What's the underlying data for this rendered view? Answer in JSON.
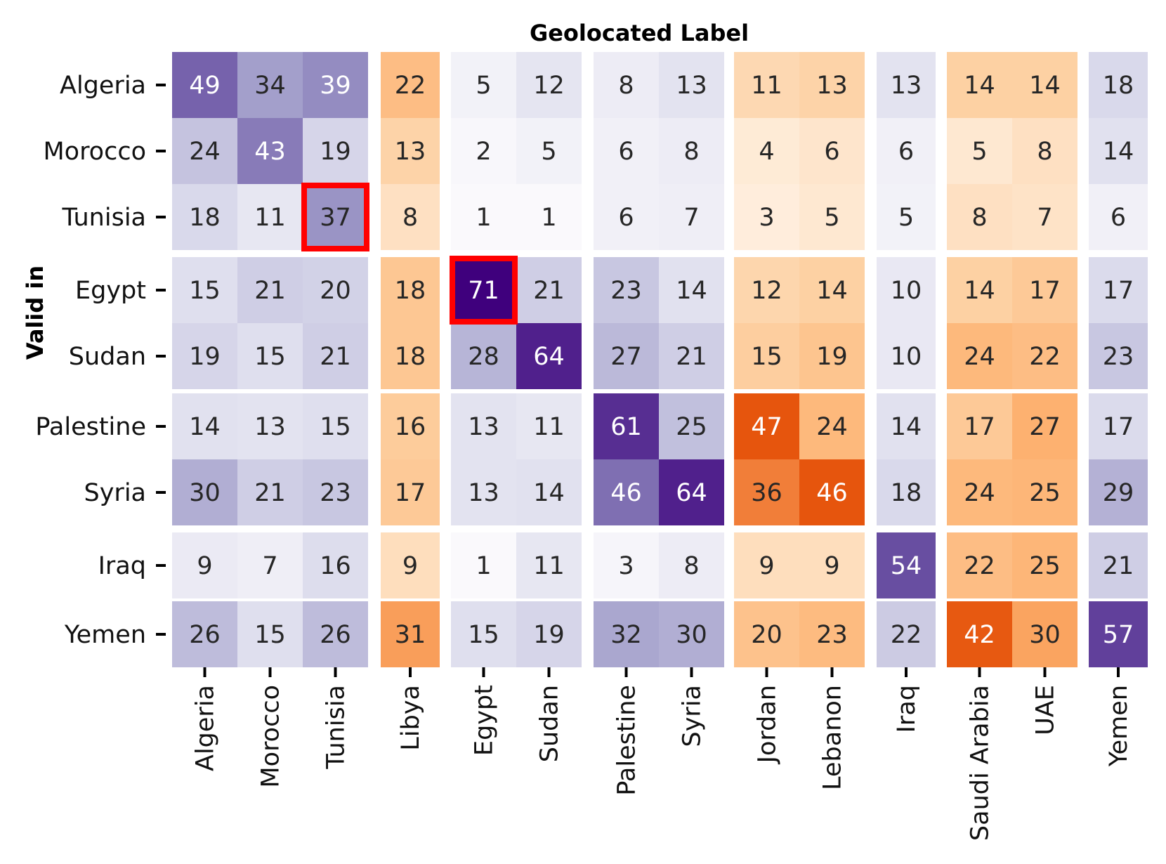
{
  "chart_data": {
    "type": "heatmap",
    "title": "Geolocated Label",
    "xlabel": "Geolocated Label",
    "ylabel": "Valid in",
    "columns": [
      "Algeria",
      "Morocco",
      "Tunisia",
      "Libya",
      "Egypt",
      "Sudan",
      "Palestine",
      "Syria",
      "Jordan",
      "Lebanon",
      "Iraq",
      "Saudi Arabia",
      "UAE",
      "Yemen"
    ],
    "rows": [
      "Algeria",
      "Morocco",
      "Tunisia",
      "Egypt",
      "Sudan",
      "Palestine",
      "Syria",
      "Iraq",
      "Yemen"
    ],
    "values": [
      [
        49,
        34,
        39,
        22,
        5,
        12,
        8,
        13,
        11,
        13,
        13,
        14,
        14,
        18
      ],
      [
        24,
        43,
        19,
        13,
        2,
        5,
        6,
        8,
        4,
        6,
        6,
        5,
        8,
        14
      ],
      [
        18,
        11,
        37,
        8,
        1,
        1,
        6,
        7,
        3,
        5,
        5,
        8,
        7,
        6
      ],
      [
        15,
        21,
        20,
        18,
        71,
        21,
        23,
        14,
        12,
        14,
        10,
        14,
        17,
        17
      ],
      [
        19,
        15,
        21,
        18,
        28,
        64,
        27,
        21,
        15,
        19,
        10,
        24,
        22,
        23
      ],
      [
        14,
        13,
        15,
        16,
        13,
        11,
        61,
        25,
        47,
        24,
        14,
        17,
        27,
        17
      ],
      [
        30,
        21,
        23,
        17,
        13,
        14,
        46,
        64,
        36,
        46,
        18,
        24,
        25,
        29
      ],
      [
        9,
        7,
        16,
        9,
        1,
        11,
        3,
        8,
        9,
        9,
        54,
        22,
        25,
        21
      ],
      [
        26,
        15,
        26,
        31,
        15,
        19,
        32,
        30,
        20,
        23,
        22,
        42,
        30,
        57
      ]
    ],
    "row_groups": [
      [
        "Algeria",
        "Morocco",
        "Tunisia"
      ],
      [
        "Egypt",
        "Sudan"
      ],
      [
        "Palestine",
        "Syria"
      ],
      [
        "Iraq"
      ],
      [
        "Yemen"
      ]
    ],
    "column_groups": [
      [
        "Algeria",
        "Morocco",
        "Tunisia"
      ],
      [
        "Libya"
      ],
      [
        "Egypt",
        "Sudan"
      ],
      [
        "Palestine",
        "Syria"
      ],
      [
        "Jordan",
        "Lebanon"
      ],
      [
        "Iraq"
      ],
      [
        "Saudi Arabia",
        "UAE"
      ],
      [
        "Yemen"
      ]
    ],
    "purple_block_pairs": [
      [
        0,
        0
      ],
      [
        0,
        2
      ],
      [
        0,
        3
      ],
      [
        0,
        5
      ],
      [
        0,
        7
      ],
      [
        1,
        0
      ],
      [
        1,
        2
      ],
      [
        1,
        3
      ],
      [
        1,
        5
      ],
      [
        1,
        7
      ],
      [
        2,
        0
      ],
      [
        2,
        2
      ],
      [
        2,
        3
      ],
      [
        2,
        5
      ],
      [
        2,
        7
      ],
      [
        3,
        0
      ],
      [
        3,
        2
      ],
      [
        3,
        3
      ],
      [
        3,
        5
      ],
      [
        3,
        7
      ],
      [
        4,
        0
      ],
      [
        4,
        2
      ],
      [
        4,
        3
      ],
      [
        4,
        5
      ],
      [
        4,
        7
      ]
    ],
    "highlighted_cells": [
      {
        "row": "Tunisia",
        "column": "Tunisia"
      },
      {
        "row": "Egypt",
        "column": "Egypt"
      }
    ],
    "colormaps": {
      "purple": [
        "#fcfbfd",
        "#dadaeb",
        "#9e9ac8",
        "#6a51a3",
        "#3f007d"
      ],
      "orange": [
        "#fff5eb",
        "#fdd0a2",
        "#fdae6b",
        "#e6550d",
        "#e6550d"
      ],
      "range": [
        0,
        71
      ]
    },
    "highlight_color": "#ff0000",
    "grid": false,
    "legend": "none"
  }
}
